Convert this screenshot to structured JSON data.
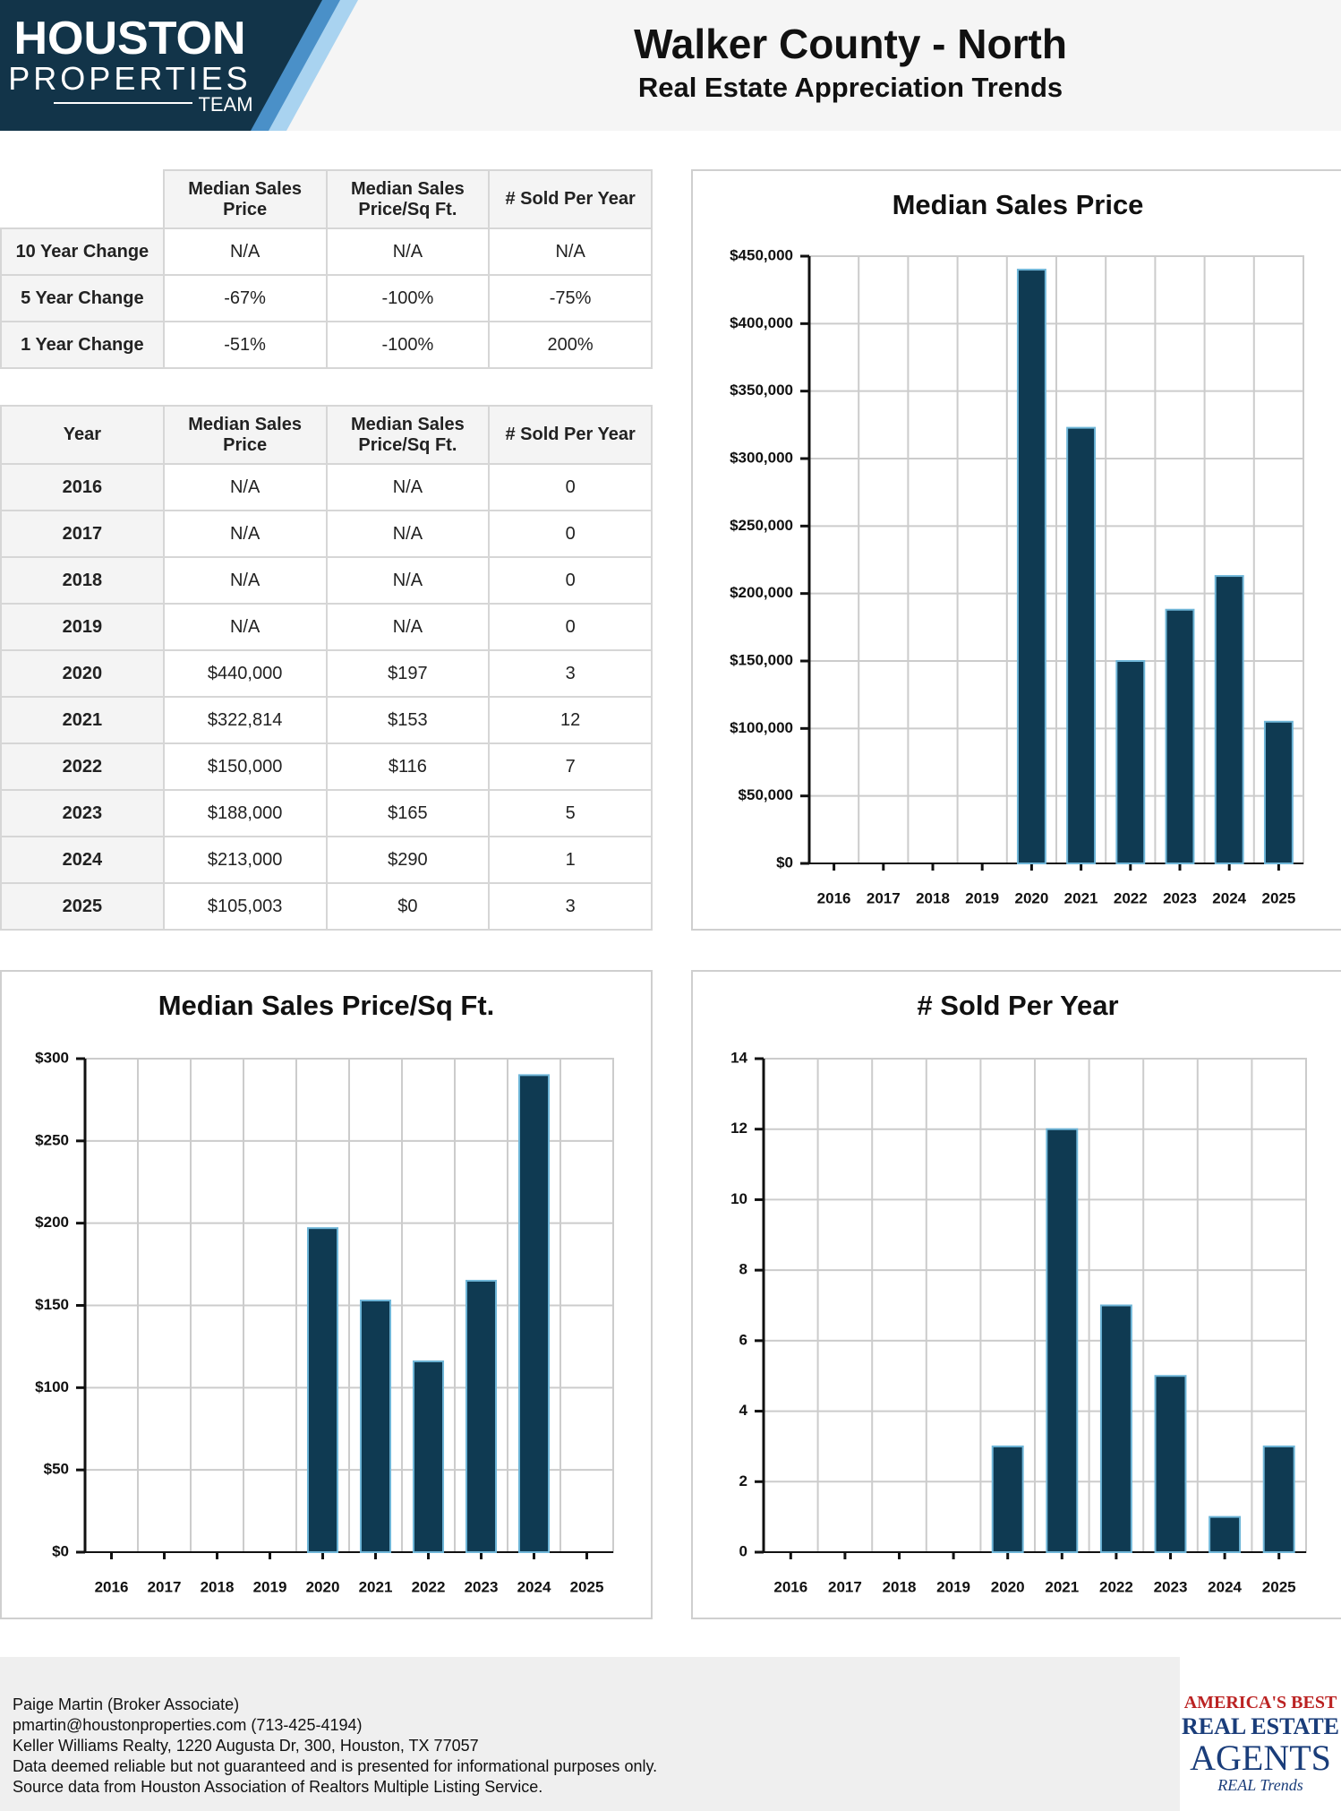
{
  "header": {
    "logo": {
      "line1": "HOUSTON",
      "line2": "PROPERTIES",
      "line3": "TEAM"
    },
    "title": "Walker County - North",
    "subtitle": "Real Estate Appreciation Trends"
  },
  "summary_table": {
    "columns": [
      "Median Sales Price",
      "Median Sales Price/Sq Ft.",
      "# Sold Per Year"
    ],
    "rows": [
      [
        "10 Year Change",
        "N/A",
        "N/A",
        "N/A"
      ],
      [
        "5 Year Change",
        "-67%",
        "-100%",
        "-75%"
      ],
      [
        "1 Year Change",
        "-51%",
        "-100%",
        "200%"
      ]
    ]
  },
  "yearly_table": {
    "columns": [
      "Year",
      "Median Sales Price",
      "Median Sales Price/Sq Ft.",
      "# Sold Per Year"
    ],
    "rows": [
      [
        "2016",
        "N/A",
        "N/A",
        "0"
      ],
      [
        "2017",
        "N/A",
        "N/A",
        "0"
      ],
      [
        "2018",
        "N/A",
        "N/A",
        "0"
      ],
      [
        "2019",
        "N/A",
        "N/A",
        "0"
      ],
      [
        "2020",
        "$440,000",
        "$197",
        "3"
      ],
      [
        "2021",
        "$322,814",
        "$153",
        "12"
      ],
      [
        "2022",
        "$150,000",
        "$116",
        "7"
      ],
      [
        "2023",
        "$188,000",
        "$165",
        "5"
      ],
      [
        "2024",
        "$213,000",
        "$290",
        "1"
      ],
      [
        "2025",
        "$105,003",
        "$0",
        "3"
      ]
    ]
  },
  "chart_data": [
    {
      "type": "bar",
      "title": "Median Sales Price",
      "categories": [
        "2016",
        "2017",
        "2018",
        "2019",
        "2020",
        "2021",
        "2022",
        "2023",
        "2024",
        "2025"
      ],
      "values": [
        null,
        null,
        null,
        null,
        440000,
        322814,
        150000,
        188000,
        213000,
        105003
      ],
      "color": "#0f3a52",
      "ylim": [
        0,
        450000
      ],
      "yticks": [
        {
          "value": 0,
          "label": "$0"
        },
        {
          "value": 50000,
          "label": "$50,000"
        },
        {
          "value": 100000,
          "label": "$100,000"
        },
        {
          "value": 150000,
          "label": "$150,000"
        },
        {
          "value": 200000,
          "label": "$200,000"
        },
        {
          "value": 250000,
          "label": "$250,000"
        },
        {
          "value": 300000,
          "label": "$300,000"
        },
        {
          "value": 350000,
          "label": "$350,000"
        },
        {
          "value": 400000,
          "label": "$400,000"
        },
        {
          "value": 450000,
          "label": "$450,000"
        }
      ],
      "grid": true
    },
    {
      "type": "bar",
      "title": "Median Sales Price/Sq Ft.",
      "categories": [
        "2016",
        "2017",
        "2018",
        "2019",
        "2020",
        "2021",
        "2022",
        "2023",
        "2024",
        "2025"
      ],
      "values": [
        null,
        null,
        null,
        null,
        197,
        153,
        116,
        165,
        290,
        0
      ],
      "color": "#0f3a52",
      "ylim": [
        0,
        300
      ],
      "yticks": [
        {
          "value": 0,
          "label": "$0"
        },
        {
          "value": 50,
          "label": "$50"
        },
        {
          "value": 100,
          "label": "$100"
        },
        {
          "value": 150,
          "label": "$150"
        },
        {
          "value": 200,
          "label": "$200"
        },
        {
          "value": 250,
          "label": "$250"
        },
        {
          "value": 300,
          "label": "$300"
        }
      ],
      "grid": true
    },
    {
      "type": "bar",
      "title": "# Sold Per Year",
      "categories": [
        "2016",
        "2017",
        "2018",
        "2019",
        "2020",
        "2021",
        "2022",
        "2023",
        "2024",
        "2025"
      ],
      "values": [
        0,
        0,
        0,
        0,
        3,
        12,
        7,
        5,
        1,
        3
      ],
      "color": "#0f3a52",
      "ylim": [
        0,
        14
      ],
      "yticks": [
        0,
        2,
        4,
        6,
        8,
        10,
        12,
        14
      ],
      "grid": true
    }
  ],
  "footer": {
    "lines": [
      "Paige Martin (Broker Associate)",
      "pmartin@houstonproperties.com (713-425-4194)",
      "Keller Williams Realty, 1220 Augusta Dr, 300, Houston, TX 77057",
      "Data deemed reliable but not guaranteed and is presented for informational purposes only.",
      "Source data from Houston Association of Realtors Multiple Listing Service."
    ]
  },
  "badge": {
    "line1": "AMERICA'S BEST",
    "line2": "REAL ESTATE",
    "line3": "AGENTS",
    "line4": "REAL Trends"
  }
}
